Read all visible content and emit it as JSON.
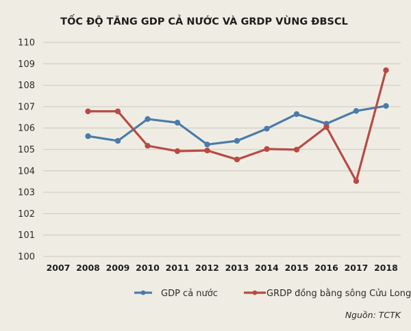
{
  "chart_data": {
    "type": "line",
    "title": "TỐC ĐỘ TĂNG GDP CẢ NƯỚC VÀ GRDP VÙNG ĐBSCL",
    "xlabel": "",
    "ylabel": "",
    "ylim": [
      100,
      110
    ],
    "yticks": [
      "100",
      "101",
      "102",
      "103",
      "104",
      "105",
      "106",
      "107",
      "108",
      "109",
      "110"
    ],
    "categories": [
      "2007",
      "2008",
      "2009",
      "2010",
      "2011",
      "2012",
      "2013",
      "2014",
      "2015",
      "2016",
      "2017",
      "2018"
    ],
    "grid": true,
    "legend_position": "bottom",
    "series": [
      {
        "name": "GDP cả nước",
        "color": "#4a7bab",
        "values": [
          null,
          105.62,
          105.4,
          106.42,
          106.25,
          105.23,
          105.4,
          105.97,
          106.65,
          106.2,
          106.8,
          107.03
        ]
      },
      {
        "name": "GRDP đồng bằng sông Cửu Long",
        "color": "#b84a44",
        "values": [
          null,
          106.78,
          106.78,
          105.17,
          104.92,
          104.95,
          104.53,
          105.02,
          104.99,
          106.05,
          103.52,
          108.7
        ]
      }
    ],
    "source": "Nguồn: TCTK"
  }
}
